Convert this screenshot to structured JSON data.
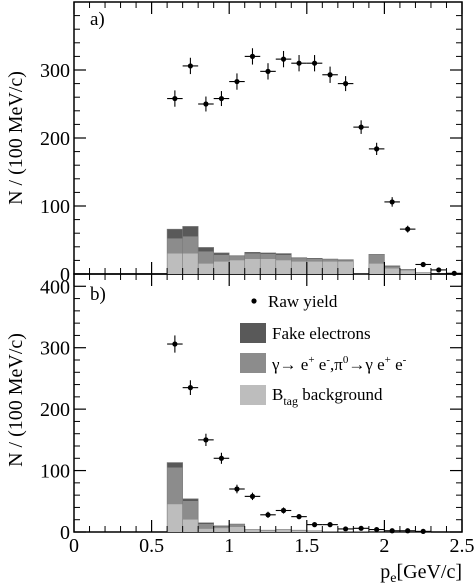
{
  "chart_data": [
    {
      "panel_label": "a)",
      "type": "bar",
      "ylabel": "N / (100 MeV/c)",
      "xlim": [
        0,
        2.5
      ],
      "ylim": [
        0,
        400
      ],
      "y_ticks": [
        0,
        100,
        200,
        300
      ],
      "x_ticks": [
        0,
        0.5,
        1,
        1.5,
        2,
        2.5
      ],
      "bin_width": 0.1,
      "points": {
        "name": "Raw yield",
        "x": [
          0.65,
          0.75,
          0.85,
          0.95,
          1.05,
          1.15,
          1.25,
          1.35,
          1.45,
          1.55,
          1.65,
          1.75,
          1.85,
          1.95,
          2.05,
          2.15,
          2.25,
          2.35,
          2.45
        ],
        "y": [
          258,
          306,
          250,
          258,
          283,
          320,
          298,
          316,
          310,
          310,
          293,
          280,
          216,
          184,
          106,
          66,
          14,
          6,
          1
        ],
        "yerr": [
          12,
          12,
          11,
          11,
          12,
          12,
          12,
          12,
          12,
          12,
          12,
          11,
          10,
          9,
          7,
          5,
          3,
          2,
          1
        ]
      },
      "stack": {
        "bins": [
          0.6,
          0.7,
          0.8,
          0.9,
          1.0,
          1.1,
          1.2,
          1.3,
          1.4,
          1.5,
          1.6,
          1.7,
          1.8,
          1.9,
          2.0,
          2.1,
          2.2
        ],
        "series": [
          {
            "name": "B_tag background",
            "color": "#bdbdbd",
            "values": [
              30,
              30,
              15,
              18,
              20,
              22,
              22,
              20,
              18,
              18,
              18,
              18,
              0,
              15,
              8,
              5,
              2
            ]
          },
          {
            "name": "γ→e⁺e⁻, π⁰→γe⁺e⁻",
            "color": "#8c8c8c",
            "values": [
              22,
              25,
              18,
              10,
              6,
              8,
              7,
              8,
              5,
              4,
              3,
              2,
              0,
              14,
              3,
              2,
              0
            ]
          },
          {
            "name": "Fake electrons",
            "color": "#595959",
            "values": [
              14,
              15,
              6,
              3,
              1,
              2,
              2,
              2,
              1,
              1,
              1,
              1,
              0,
              0,
              1,
              0,
              0
            ]
          }
        ]
      }
    },
    {
      "panel_label": "b)",
      "type": "bar",
      "ylabel": "N / (100 MeV/c)",
      "xlabel_main": "p",
      "xlabel_sub": "e",
      "xlabel_unit": "[GeV/c]",
      "xlim": [
        0,
        2.5
      ],
      "ylim": [
        0,
        420
      ],
      "y_ticks": [
        0,
        100,
        200,
        300,
        400
      ],
      "x_ticks": [
        0,
        0.5,
        1,
        1.5,
        2,
        2.5
      ],
      "x_tick_labels": [
        "0",
        "0.5",
        "1",
        "1.5",
        "2",
        "2.5"
      ],
      "bin_width": 0.1,
      "points": {
        "name": "Raw yield",
        "x": [
          0.65,
          0.75,
          0.85,
          0.95,
          1.05,
          1.15,
          1.25,
          1.35,
          1.45,
          1.55,
          1.65,
          1.75,
          1.85,
          1.95,
          2.05,
          2.15,
          2.25
        ],
        "y": [
          306,
          235,
          150,
          120,
          70,
          58,
          28,
          35,
          25,
          12,
          12,
          5,
          6,
          4,
          2,
          2,
          1
        ],
        "yerr": [
          14,
          12,
          10,
          9,
          7,
          6,
          5,
          5,
          4,
          3,
          3,
          2,
          2,
          2,
          1,
          1,
          1
        ]
      },
      "stack": {
        "bins": [
          0.6,
          0.7,
          0.8,
          0.9,
          1.0,
          1.1,
          1.2,
          1.3,
          1.4,
          1.5,
          1.6,
          1.7,
          1.8,
          1.9,
          2.0,
          2.1,
          2.2
        ],
        "series": [
          {
            "name": "B_tag background",
            "color": "#bdbdbd",
            "values": [
              45,
              20,
              5,
              6,
              8,
              3,
              2,
              3,
              2,
              2,
              1,
              1,
              1,
              0,
              0,
              0,
              0
            ]
          },
          {
            "name": "γ→e⁺e⁻, π⁰→γe⁺e⁻",
            "color": "#8c8c8c",
            "values": [
              60,
              30,
              8,
              3,
              4,
              1,
              1,
              1,
              1,
              0,
              0,
              0,
              0,
              0,
              0,
              0,
              0
            ]
          },
          {
            "name": "Fake electrons",
            "color": "#595959",
            "values": [
              8,
              4,
              2,
              1,
              1,
              0,
              0,
              0,
              0,
              0,
              0,
              0,
              0,
              0,
              0,
              0,
              0
            ]
          }
        ]
      }
    }
  ],
  "legend": {
    "raw_yield": "Raw yield",
    "fake": "Fake electrons",
    "conv_gamma": "γ→ e",
    "conv_sup1": "+",
    "conv_e": " e",
    "conv_sup2": "-",
    "conv_pi": ",π",
    "conv_sup3": "0",
    "conv_arrow": "→γ e",
    "conv_sup4": "+",
    "conv_e2": " e",
    "conv_sup5": "-",
    "btag_main": "B",
    "btag_sub": "tag",
    "btag_rest": " background"
  },
  "colors": {
    "fake": "#595959",
    "conv": "#8c8c8c",
    "btag": "#bdbdbd",
    "points": "#000000"
  }
}
